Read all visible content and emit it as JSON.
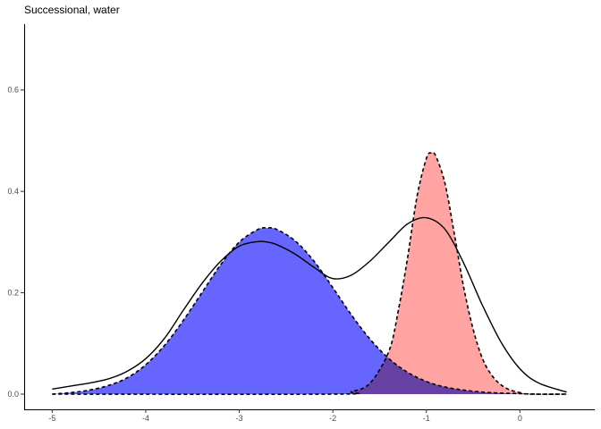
{
  "chart_data": {
    "type": "area",
    "title": "Successional, water",
    "xlabel": "",
    "ylabel": "",
    "xlim": [
      -5.3,
      0.8
    ],
    "ylim": [
      -0.03,
      0.73
    ],
    "x_ticks": [
      -5,
      -4,
      -3,
      -2,
      -1,
      0
    ],
    "x_tick_labels": [
      "-5",
      "-4",
      "-3",
      "-2",
      "-1",
      "0"
    ],
    "y_ticks": [
      0.0,
      0.2,
      0.4,
      0.6
    ],
    "y_tick_labels": [
      "0.0",
      "0.2",
      "0.4",
      "0.6"
    ],
    "grid": false,
    "legend": "none",
    "series": [
      {
        "kind": "filled-density",
        "color": "#6666ff",
        "border": "dashed",
        "x": [
          -5.0,
          -4.8,
          -4.6,
          -4.4,
          -4.2,
          -4.0,
          -3.8,
          -3.6,
          -3.4,
          -3.2,
          -3.0,
          -2.8,
          -2.7,
          -2.6,
          -2.4,
          -2.2,
          -2.0,
          -1.8,
          -1.6,
          -1.4,
          -1.2,
          -1.0,
          -0.8,
          -0.6,
          -0.4,
          -0.2,
          0.0,
          0.2,
          0.5
        ],
        "y": [
          0.0,
          0.003,
          0.008,
          0.017,
          0.032,
          0.058,
          0.096,
          0.145,
          0.2,
          0.255,
          0.3,
          0.325,
          0.328,
          0.325,
          0.302,
          0.262,
          0.21,
          0.156,
          0.108,
          0.07,
          0.043,
          0.025,
          0.014,
          0.008,
          0.004,
          0.002,
          0.001,
          0.0,
          0.0
        ]
      },
      {
        "kind": "filled-density",
        "color": "#ff6666",
        "border": "dashed",
        "x": [
          -5.0,
          -2.0,
          -1.8,
          -1.6,
          -1.4,
          -1.3,
          -1.2,
          -1.1,
          -1.0,
          -0.95,
          -0.9,
          -0.8,
          -0.7,
          -0.6,
          -0.5,
          -0.4,
          -0.3,
          -0.2,
          -0.1,
          0.0,
          0.1,
          0.5
        ],
        "y": [
          0.0,
          0.0,
          0.005,
          0.022,
          0.085,
          0.165,
          0.27,
          0.39,
          0.465,
          0.476,
          0.47,
          0.415,
          0.315,
          0.21,
          0.128,
          0.07,
          0.037,
          0.018,
          0.008,
          0.003,
          0.0,
          0.0
        ]
      },
      {
        "kind": "total-density",
        "color": "#000000",
        "border": "solid",
        "x": [
          -5.0,
          -4.8,
          -4.6,
          -4.4,
          -4.2,
          -4.0,
          -3.8,
          -3.6,
          -3.4,
          -3.2,
          -3.0,
          -2.8,
          -2.7,
          -2.6,
          -2.4,
          -2.2,
          -2.0,
          -1.8,
          -1.6,
          -1.4,
          -1.2,
          -1.0,
          -0.8,
          -0.6,
          -0.4,
          -0.2,
          0.0,
          0.2,
          0.5
        ],
        "y": [
          0.01,
          0.016,
          0.022,
          0.03,
          0.045,
          0.07,
          0.11,
          0.165,
          0.218,
          0.262,
          0.292,
          0.301,
          0.3,
          0.295,
          0.276,
          0.25,
          0.228,
          0.235,
          0.263,
          0.3,
          0.336,
          0.348,
          0.325,
          0.258,
          0.175,
          0.102,
          0.05,
          0.022,
          0.004
        ]
      }
    ]
  }
}
